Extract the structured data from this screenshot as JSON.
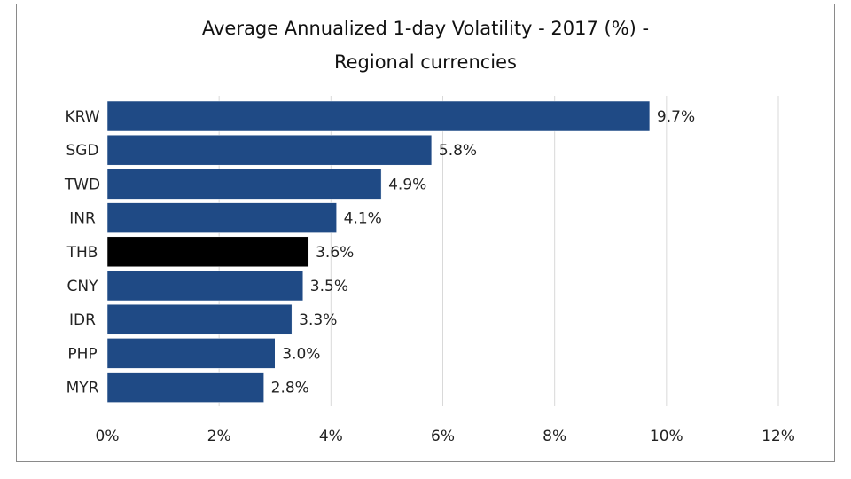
{
  "chart_data": {
    "type": "bar",
    "orientation": "horizontal",
    "title_line1": "Average Annualized 1-day Volatility - 2017 (%) -",
    "title_line2": "Regional currencies",
    "categories": [
      "KRW",
      "SGD",
      "TWD",
      "INR",
      "THB",
      "CNY",
      "IDR",
      "PHP",
      "MYR"
    ],
    "values": [
      9.7,
      5.8,
      4.9,
      4.1,
      3.6,
      3.5,
      3.3,
      3.0,
      2.8
    ],
    "data_labels": [
      "9.7%",
      "5.8%",
      "4.9%",
      "4.1%",
      "3.6%",
      "3.5%",
      "3.3%",
      "3.0%",
      "2.8%"
    ],
    "highlight": "THB",
    "xlim": [
      0,
      12
    ],
    "xticks": [
      "0%",
      "2%",
      "4%",
      "6%",
      "8%",
      "10%",
      "12%"
    ],
    "xtick_values": [
      0,
      2,
      4,
      6,
      8,
      10,
      12
    ],
    "grid": true,
    "colors": {
      "bar": "#1f4a85",
      "highlight": "#000000",
      "grid": "#d9d9d9"
    }
  }
}
